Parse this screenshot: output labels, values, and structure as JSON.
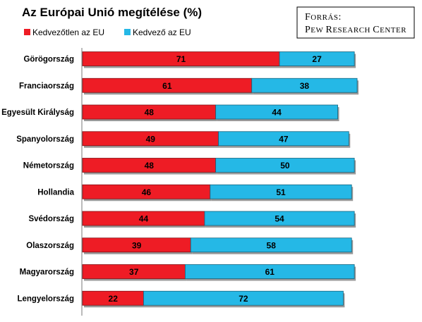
{
  "chart_data": {
    "type": "bar",
    "orientation": "horizontal",
    "stacked": true,
    "title": "Az Európai Unió megítélése (%)",
    "source_label": "Forrás:",
    "source_name": "Pew Research Center",
    "legend_position": "top-left",
    "grid": false,
    "xlim": [
      0,
      100
    ],
    "categories": [
      "Görögország",
      "Franciaország",
      "Egyesült Királyság",
      "Spanyolország",
      "Németország",
      "Hollandia",
      "Svédország",
      "Olaszország",
      "Magyarország",
      "Lengyelország"
    ],
    "series": [
      {
        "name": "Kedvezőtlen az EU",
        "color": "#ee1c25",
        "values": [
          71,
          61,
          48,
          49,
          48,
          46,
          44,
          39,
          37,
          22
        ]
      },
      {
        "name": "Kedvező az EU",
        "color": "#25b8e6",
        "values": [
          27,
          38,
          44,
          47,
          50,
          51,
          54,
          58,
          61,
          72
        ]
      }
    ]
  }
}
